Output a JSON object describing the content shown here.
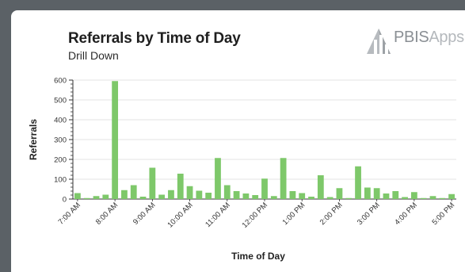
{
  "header": {
    "title": "Referrals by Time of Day",
    "subtitle": "Drill Down"
  },
  "logo": {
    "name": "pbisapps-logo-icon",
    "text_bold": "PBIS",
    "text_light": "Apps"
  },
  "colors": {
    "bar": "#7ec86a",
    "grid": "#e3e3e3",
    "axis": "#333333",
    "background": "#5b6166"
  },
  "chart_data": {
    "type": "bar",
    "title": "Referrals by Time of Day",
    "subtitle": "Drill Down",
    "xlabel": "Time of Day",
    "ylabel": "Referrals",
    "ylim": [
      0,
      600
    ],
    "yticks": [
      0,
      100,
      200,
      300,
      400,
      500,
      600
    ],
    "grid": true,
    "x_tick_labels": [
      "7:00 AM",
      "8:00 AM",
      "9:00 AM",
      "10:00 AM",
      "11:00 AM",
      "12:00 PM",
      "1:00 PM",
      "2:00 PM",
      "3:00 PM",
      "4:00 PM",
      "5:00 PM"
    ],
    "bins_per_hour": 4,
    "values": [
      30,
      5,
      15,
      22,
      595,
      45,
      70,
      12,
      158,
      22,
      45,
      128,
      65,
      42,
      32,
      207,
      70,
      40,
      28,
      20,
      103,
      15,
      207,
      40,
      30,
      12,
      120,
      10,
      55,
      5,
      165,
      58,
      55,
      28,
      40,
      10,
      35,
      5,
      15,
      5,
      25
    ]
  }
}
